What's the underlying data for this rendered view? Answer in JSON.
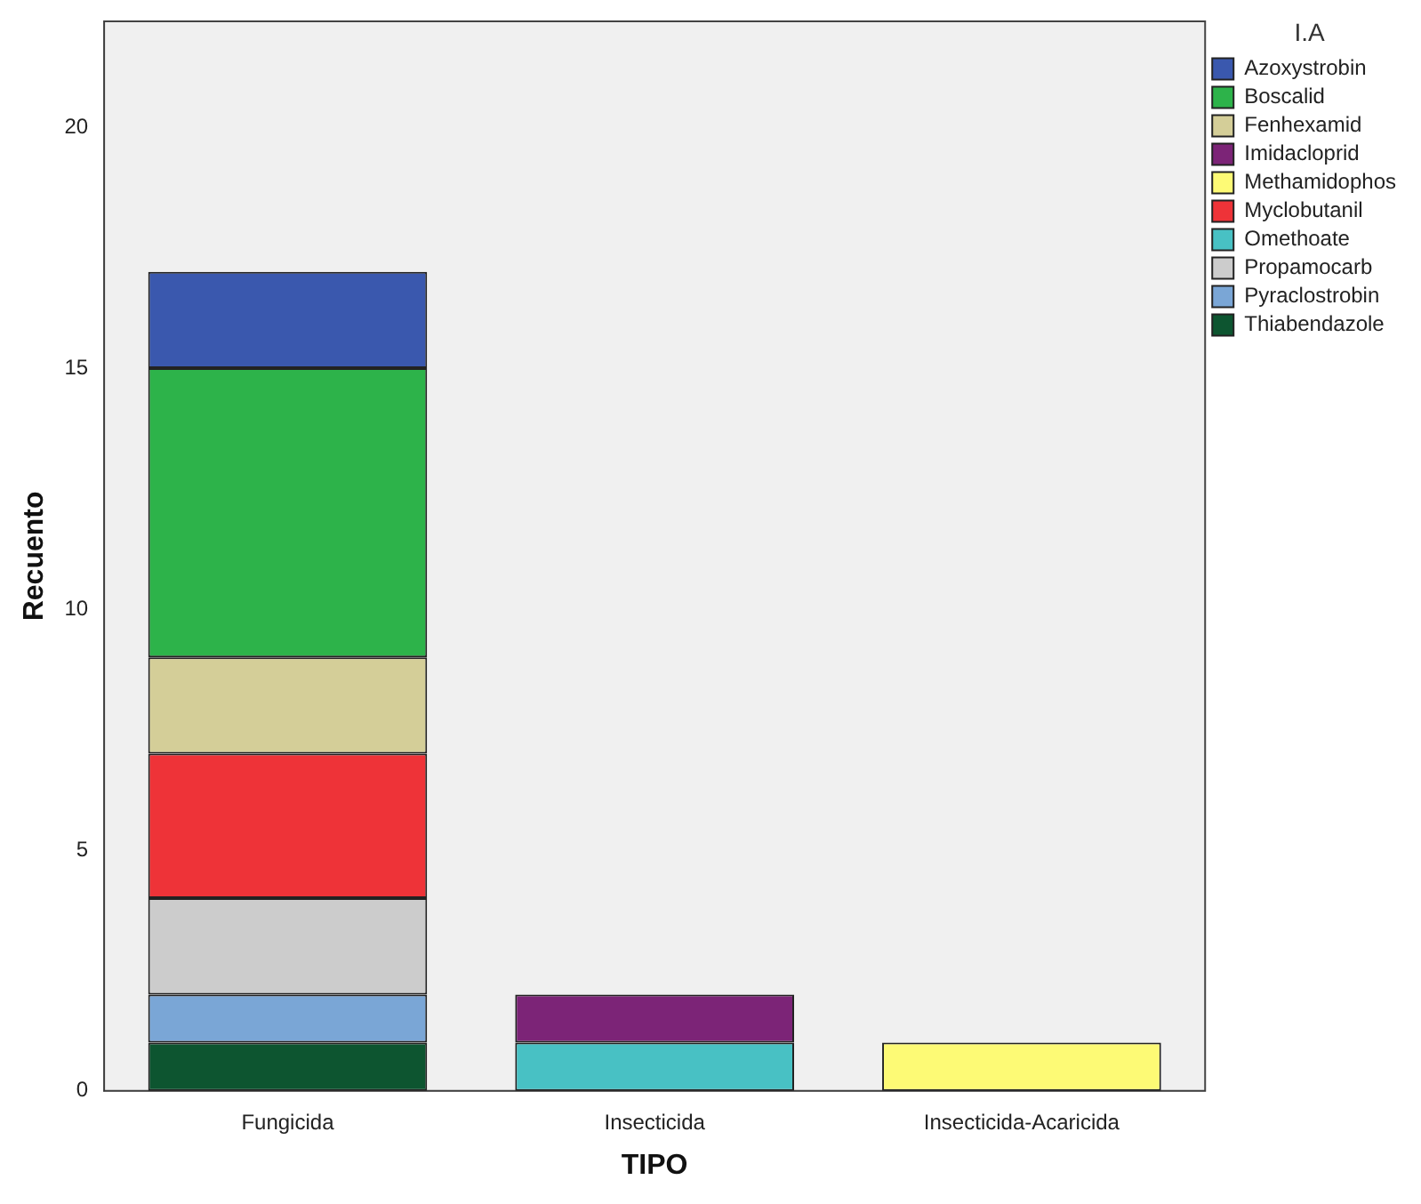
{
  "chart_data": {
    "type": "bar",
    "xlabel": "TIPO",
    "ylabel": "Recuento",
    "legend_title": "I.A",
    "legend": "right",
    "stacked": true,
    "grid": false,
    "categories": [
      "Fungicida",
      "Insecticida",
      "Insecticida-Acaricida"
    ],
    "ylim": [
      0,
      22.2
    ],
    "yticks": [
      0,
      5,
      10,
      15,
      20
    ],
    "series": [
      {
        "name": "Thiabendazole",
        "color": "#0d5530",
        "values": [
          1,
          null,
          null
        ]
      },
      {
        "name": "Pyraclostrobin",
        "color": "#7aa6d6",
        "values": [
          1,
          null,
          null
        ]
      },
      {
        "name": "Propamocarb",
        "color": "#cccccc",
        "values": [
          2,
          null,
          null
        ]
      },
      {
        "name": "Omethoate",
        "color": "#48c1c4",
        "values": [
          null,
          1,
          null
        ]
      },
      {
        "name": "Myclobutanil",
        "color": "#ee3338",
        "values": [
          3,
          null,
          null
        ]
      },
      {
        "name": "Methamidophos",
        "color": "#fdfa75",
        "values": [
          null,
          null,
          1
        ]
      },
      {
        "name": "Imidacloprid",
        "color": "#7c2477",
        "values": [
          null,
          1,
          null
        ]
      },
      {
        "name": "Fenhexamid",
        "color": "#d4ce98",
        "values": [
          2,
          null,
          null
        ]
      },
      {
        "name": "Boscalid",
        "color": "#2db34a",
        "values": [
          6,
          null,
          null
        ]
      },
      {
        "name": "Azoxystrobin",
        "color": "#3a58ae",
        "values": [
          2,
          null,
          null
        ]
      }
    ]
  }
}
